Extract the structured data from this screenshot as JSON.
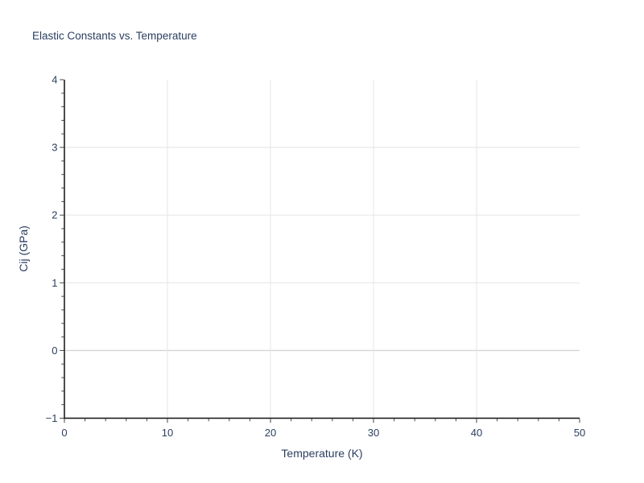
{
  "chart_data": {
    "type": "scatter",
    "title": "Elastic Constants vs. Temperature",
    "xlabel": "Temperature (K)",
    "ylabel": "Cij (GPa)",
    "xlim": [
      0,
      50
    ],
    "ylim": [
      -1,
      4
    ],
    "x_major_ticks": [
      0,
      10,
      20,
      30,
      40,
      50
    ],
    "y_major_ticks": [
      -1,
      0,
      1,
      2,
      3,
      4
    ],
    "x_minor_step": 2,
    "y_minor_step": 0.2,
    "series": [],
    "grid": true,
    "zeroline_y": 0,
    "legend_visible": false,
    "colors": {
      "text": "#2a3f5f",
      "axis_line": "#111111",
      "tick": "#444444",
      "grid": "#e8e8e8",
      "zeroline": "#d4d4d4",
      "background": "#ffffff"
    }
  }
}
